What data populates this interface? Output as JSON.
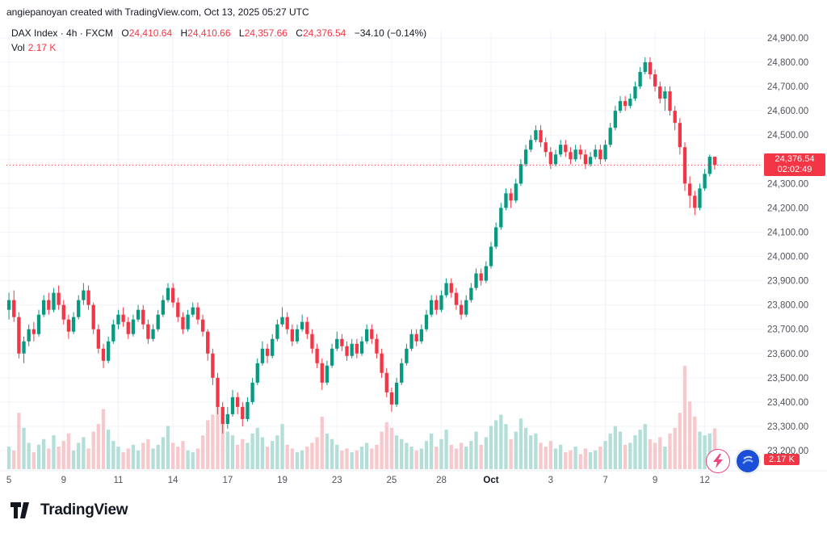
{
  "attribution": "angiepanoyan created with TradingView.com, Oct 13, 2025 05:27 UTC",
  "legend": {
    "title": "DAX Index · 4h · FXCM",
    "o_label": "O",
    "o": "24,410.64",
    "h_label": "H",
    "h": "24,410.66",
    "l_label": "L",
    "l": "24,357.66",
    "c_label": "C",
    "c": "24,376.54",
    "change": "−34.10 (−0.14%)",
    "vol_label": "Vol",
    "vol_value": "2.17 K"
  },
  "price_badge": {
    "price": "24,376.54",
    "countdown": "02:02:49"
  },
  "volume_badge": "2.17 K",
  "logo_text": "TradingView",
  "colors": {
    "up": "#089981",
    "down": "#f23645",
    "vol_up": "#b4dfd8",
    "vol_down": "#f7c8cc",
    "grid": "#f0f3fa",
    "axis_text": "#50535e",
    "badge": "#f23645"
  },
  "chart_data": {
    "type": "candlestick",
    "title": "DAX Index",
    "interval": "4h",
    "exchange": "FXCM",
    "last_price": 24376.54,
    "countdown": "02:02:49",
    "last_volume_k": 2.17,
    "y_axis": {
      "min": 23200,
      "max": 24900,
      "step": 100
    },
    "x_ticks": [
      {
        "label": "5",
        "i": 0
      },
      {
        "label": "9",
        "i": 11
      },
      {
        "label": "11",
        "i": 22
      },
      {
        "label": "14",
        "i": 33
      },
      {
        "label": "17",
        "i": 44
      },
      {
        "label": "19",
        "i": 55
      },
      {
        "label": "23",
        "i": 66
      },
      {
        "label": "25",
        "i": 77
      },
      {
        "label": "28",
        "i": 87
      },
      {
        "label": "Oct",
        "i": 97,
        "bold": true
      },
      {
        "label": "3",
        "i": 109
      },
      {
        "label": "7",
        "i": 120
      },
      {
        "label": "9",
        "i": 130
      },
      {
        "label": "12",
        "i": 140
      }
    ],
    "candles_format": [
      "open",
      "high",
      "low",
      "close",
      "volume_k"
    ],
    "candles": [
      [
        23780,
        23850,
        23740,
        23820,
        1.2
      ],
      [
        23820,
        23860,
        23730,
        23750,
        1.0
      ],
      [
        23750,
        23770,
        23580,
        23600,
        3.0
      ],
      [
        23600,
        23670,
        23560,
        23650,
        2.2
      ],
      [
        23650,
        23720,
        23630,
        23700,
        1.4
      ],
      [
        23700,
        23730,
        23650,
        23680,
        0.9
      ],
      [
        23680,
        23780,
        23670,
        23760,
        1.3
      ],
      [
        23760,
        23840,
        23750,
        23820,
        1.6
      ],
      [
        23820,
        23850,
        23760,
        23780,
        1.1
      ],
      [
        23780,
        23870,
        23770,
        23850,
        1.8
      ],
      [
        23850,
        23880,
        23780,
        23800,
        1.2
      ],
      [
        23800,
        23820,
        23720,
        23740,
        1.5
      ],
      [
        23740,
        23760,
        23660,
        23690,
        1.9
      ],
      [
        23690,
        23770,
        23680,
        23750,
        1.0
      ],
      [
        23750,
        23840,
        23740,
        23820,
        1.4
      ],
      [
        23820,
        23890,
        23800,
        23860,
        1.7
      ],
      [
        23860,
        23880,
        23780,
        23800,
        1.1
      ],
      [
        23800,
        23810,
        23680,
        23700,
        2.0
      ],
      [
        23700,
        23720,
        23600,
        23620,
        2.4
      ],
      [
        23620,
        23640,
        23540,
        23570,
        3.2
      ],
      [
        23570,
        23670,
        23560,
        23650,
        2.1
      ],
      [
        23650,
        23740,
        23640,
        23720,
        1.5
      ],
      [
        23720,
        23780,
        23700,
        23760,
        1.2
      ],
      [
        23760,
        23790,
        23710,
        23730,
        0.9
      ],
      [
        23730,
        23750,
        23660,
        23680,
        1.1
      ],
      [
        23680,
        23760,
        23670,
        23740,
        1.3
      ],
      [
        23740,
        23800,
        23730,
        23780,
        1.0
      ],
      [
        23780,
        23800,
        23700,
        23720,
        1.4
      ],
      [
        23720,
        23740,
        23640,
        23660,
        1.6
      ],
      [
        23660,
        23720,
        23650,
        23700,
        1.1
      ],
      [
        23700,
        23780,
        23690,
        23760,
        1.3
      ],
      [
        23760,
        23840,
        23750,
        23820,
        1.7
      ],
      [
        23820,
        23890,
        23810,
        23870,
        2.3
      ],
      [
        23870,
        23890,
        23790,
        23810,
        1.4
      ],
      [
        23810,
        23830,
        23730,
        23750,
        1.2
      ],
      [
        23750,
        23770,
        23680,
        23700,
        1.5
      ],
      [
        23700,
        23780,
        23690,
        23760,
        1.0
      ],
      [
        23760,
        23810,
        23750,
        23790,
        0.9
      ],
      [
        23790,
        23810,
        23720,
        23740,
        1.1
      ],
      [
        23740,
        23760,
        23670,
        23690,
        1.8
      ],
      [
        23690,
        23700,
        23570,
        23600,
        2.6
      ],
      [
        23600,
        23620,
        23470,
        23500,
        2.9
      ],
      [
        23500,
        23520,
        23350,
        23380,
        3.4
      ],
      [
        23380,
        23400,
        23270,
        23310,
        3.1
      ],
      [
        23310,
        23380,
        23290,
        23350,
        2.0
      ],
      [
        23350,
        23450,
        23340,
        23420,
        1.8
      ],
      [
        23420,
        23440,
        23350,
        23380,
        1.3
      ],
      [
        23380,
        23400,
        23300,
        23330,
        1.6
      ],
      [
        23330,
        23420,
        23320,
        23400,
        1.4
      ],
      [
        23400,
        23500,
        23390,
        23480,
        1.9
      ],
      [
        23480,
        23580,
        23470,
        23560,
        2.2
      ],
      [
        23560,
        23650,
        23550,
        23620,
        1.7
      ],
      [
        23620,
        23640,
        23560,
        23590,
        1.2
      ],
      [
        23590,
        23680,
        23580,
        23660,
        1.5
      ],
      [
        23660,
        23740,
        23650,
        23720,
        1.8
      ],
      [
        23720,
        23790,
        23710,
        23750,
        2.4
      ],
      [
        23750,
        23770,
        23680,
        23700,
        1.3
      ],
      [
        23700,
        23720,
        23630,
        23650,
        1.1
      ],
      [
        23650,
        23720,
        23640,
        23700,
        0.9
      ],
      [
        23700,
        23760,
        23690,
        23730,
        1.0
      ],
      [
        23730,
        23750,
        23660,
        23680,
        1.2
      ],
      [
        23680,
        23700,
        23600,
        23620,
        1.4
      ],
      [
        23620,
        23640,
        23540,
        23560,
        1.7
      ],
      [
        23560,
        23580,
        23450,
        23480,
        2.8
      ],
      [
        23480,
        23570,
        23470,
        23550,
        1.9
      ],
      [
        23550,
        23640,
        23540,
        23620,
        1.6
      ],
      [
        23620,
        23690,
        23610,
        23660,
        1.3
      ],
      [
        23660,
        23680,
        23610,
        23630,
        1.0
      ],
      [
        23630,
        23650,
        23570,
        23590,
        1.1
      ],
      [
        23590,
        23660,
        23580,
        23640,
        0.9
      ],
      [
        23640,
        23660,
        23580,
        23600,
        1.0
      ],
      [
        23600,
        23670,
        23590,
        23650,
        1.2
      ],
      [
        23650,
        23720,
        23640,
        23700,
        1.4
      ],
      [
        23700,
        23720,
        23640,
        23660,
        1.1
      ],
      [
        23660,
        23680,
        23580,
        23600,
        1.3
      ],
      [
        23600,
        23620,
        23500,
        23520,
        2.0
      ],
      [
        23520,
        23540,
        23420,
        23440,
        2.5
      ],
      [
        23440,
        23460,
        23360,
        23390,
        2.2
      ],
      [
        23390,
        23500,
        23380,
        23480,
        1.8
      ],
      [
        23480,
        23580,
        23470,
        23560,
        1.6
      ],
      [
        23560,
        23640,
        23550,
        23620,
        1.4
      ],
      [
        23620,
        23700,
        23610,
        23680,
        1.2
      ],
      [
        23680,
        23700,
        23630,
        23650,
        1.0
      ],
      [
        23650,
        23720,
        23640,
        23700,
        1.1
      ],
      [
        23700,
        23780,
        23690,
        23760,
        1.5
      ],
      [
        23760,
        23840,
        23750,
        23820,
        1.9
      ],
      [
        23820,
        23840,
        23760,
        23780,
        1.2
      ],
      [
        23780,
        23860,
        23770,
        23840,
        1.6
      ],
      [
        23840,
        23910,
        23830,
        23890,
        2.1
      ],
      [
        23890,
        23910,
        23830,
        23850,
        1.3
      ],
      [
        23850,
        23870,
        23780,
        23800,
        1.1
      ],
      [
        23800,
        23820,
        23740,
        23760,
        1.4
      ],
      [
        23760,
        23840,
        23750,
        23820,
        1.2
      ],
      [
        23820,
        23890,
        23810,
        23870,
        1.5
      ],
      [
        23870,
        23950,
        23860,
        23930,
        2.0
      ],
      [
        23930,
        23950,
        23880,
        23900,
        1.3
      ],
      [
        23900,
        23980,
        23890,
        23960,
        1.7
      ],
      [
        23960,
        24060,
        23950,
        24040,
        2.3
      ],
      [
        24040,
        24140,
        24030,
        24120,
        2.6
      ],
      [
        24120,
        24220,
        24110,
        24200,
        2.9
      ],
      [
        24200,
        24280,
        24190,
        24260,
        2.4
      ],
      [
        24260,
        24280,
        24200,
        24230,
        1.6
      ],
      [
        24230,
        24320,
        24220,
        24300,
        2.0
      ],
      [
        24300,
        24400,
        24290,
        24380,
        2.7
      ],
      [
        24380,
        24460,
        24370,
        24440,
        2.2
      ],
      [
        24440,
        24500,
        24430,
        24480,
        1.8
      ],
      [
        24480,
        24540,
        24470,
        24520,
        1.9
      ],
      [
        24520,
        24540,
        24450,
        24470,
        1.4
      ],
      [
        24470,
        24490,
        24410,
        24430,
        1.2
      ],
      [
        24430,
        24450,
        24360,
        24380,
        1.5
      ],
      [
        24380,
        24440,
        24370,
        24420,
        1.1
      ],
      [
        24420,
        24480,
        24410,
        24460,
        1.3
      ],
      [
        24460,
        24480,
        24410,
        24430,
        0.9
      ],
      [
        24430,
        24450,
        24380,
        24400,
        1.0
      ],
      [
        24400,
        24460,
        24390,
        24440,
        1.2
      ],
      [
        24440,
        24460,
        24400,
        24420,
        0.8
      ],
      [
        24420,
        24440,
        24360,
        24380,
        1.1
      ],
      [
        24380,
        24430,
        24370,
        24410,
        0.9
      ],
      [
        24410,
        24460,
        24400,
        24440,
        1.0
      ],
      [
        24440,
        24460,
        24380,
        24400,
        1.2
      ],
      [
        24400,
        24480,
        24390,
        24460,
        1.5
      ],
      [
        24460,
        24550,
        24450,
        24530,
        1.9
      ],
      [
        24530,
        24620,
        24520,
        24600,
        2.3
      ],
      [
        24600,
        24660,
        24590,
        24640,
        2.0
      ],
      [
        24640,
        24660,
        24600,
        24620,
        1.3
      ],
      [
        24620,
        24670,
        24610,
        24650,
        1.4
      ],
      [
        24650,
        24720,
        24640,
        24700,
        1.8
      ],
      [
        24700,
        24780,
        24690,
        24760,
        2.1
      ],
      [
        24760,
        24820,
        24750,
        24800,
        2.4
      ],
      [
        24800,
        24820,
        24730,
        24750,
        1.6
      ],
      [
        24750,
        24770,
        24680,
        24700,
        1.4
      ],
      [
        24700,
        24720,
        24630,
        24650,
        1.7
      ],
      [
        24650,
        24700,
        24600,
        24680,
        1.2
      ],
      [
        24680,
        24700,
        24580,
        24600,
        1.9
      ],
      [
        24600,
        24620,
        24520,
        24550,
        2.2
      ],
      [
        24550,
        24570,
        24420,
        24450,
        3.0
      ],
      [
        24450,
        24470,
        24270,
        24300,
        5.5
      ],
      [
        24300,
        24330,
        24200,
        24250,
        3.6
      ],
      [
        24250,
        24270,
        24170,
        24200,
        2.8
      ],
      [
        24200,
        24300,
        24190,
        24280,
        2.0
      ],
      [
        24280,
        24360,
        24270,
        24340,
        1.8
      ],
      [
        24340,
        24420,
        24330,
        24410.64,
        1.9
      ],
      [
        24410.64,
        24410.66,
        24357.66,
        24376.54,
        2.17
      ]
    ]
  }
}
